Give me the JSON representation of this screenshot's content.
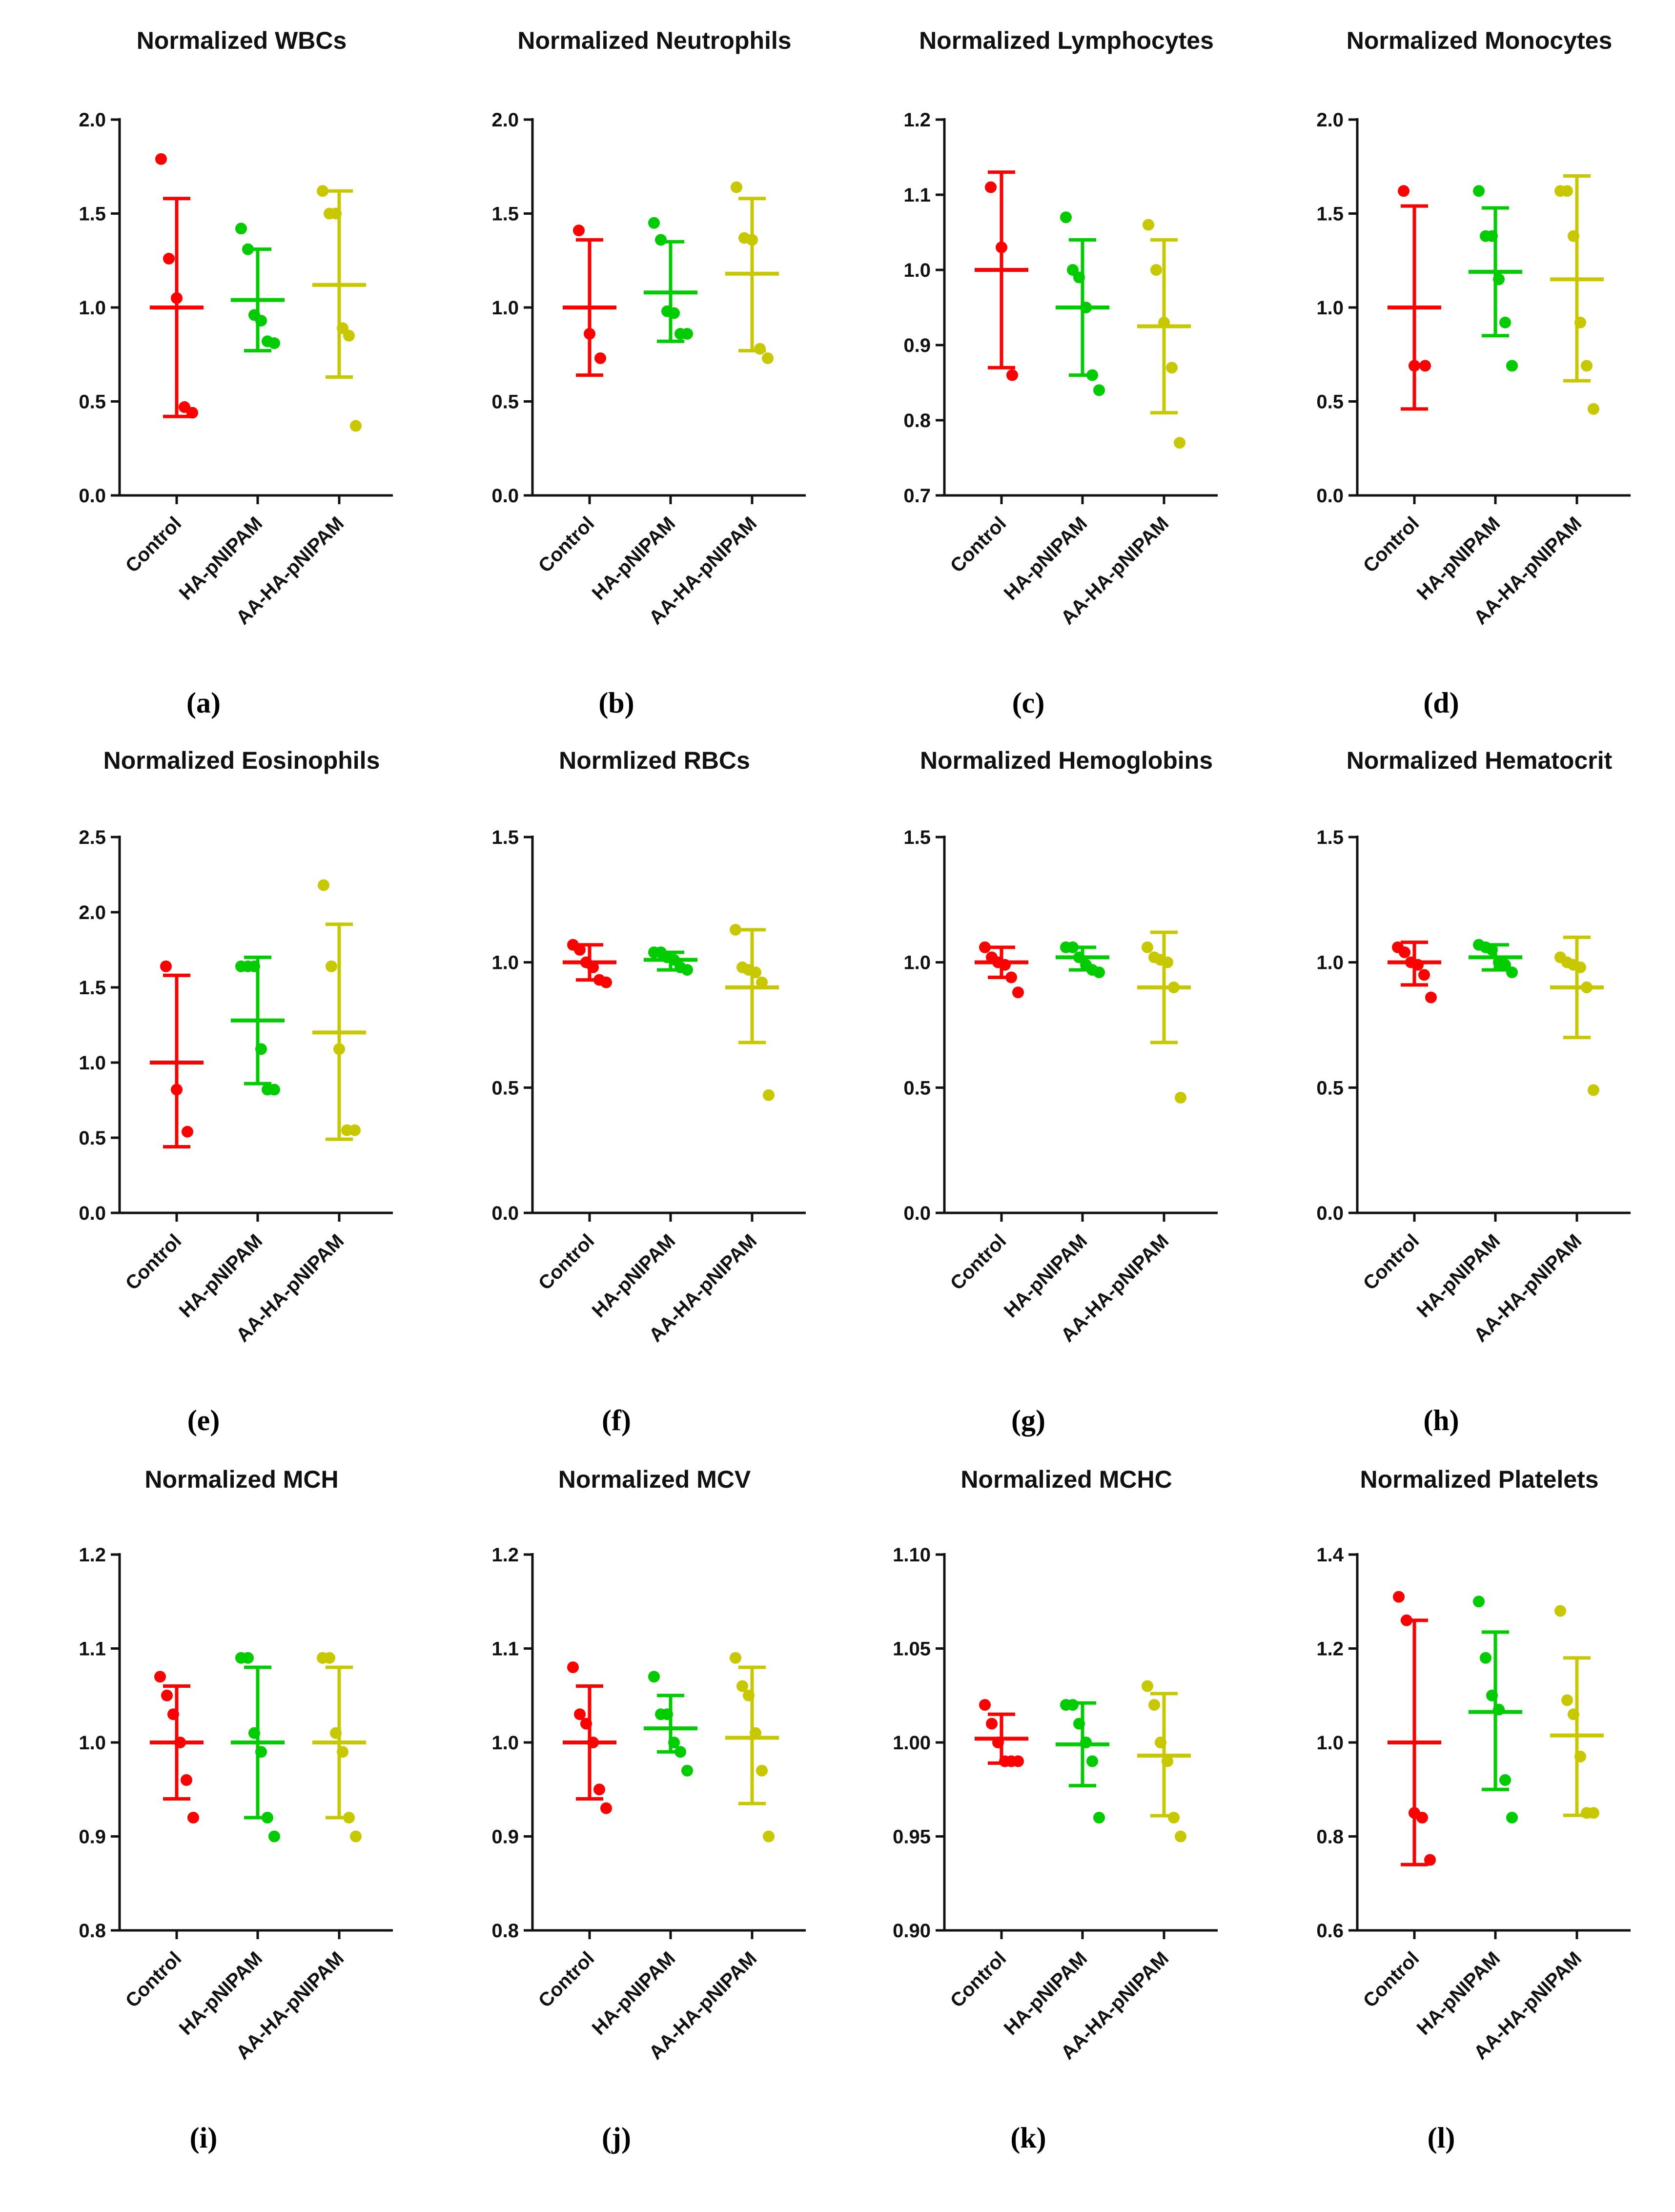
{
  "colors": {
    "Control": "#ff0000",
    "HA-pNIPAM": "#00cc00",
    "AA-HA-pNIPAM": "#c8c800"
  },
  "chart_data": [
    {
      "type": "scatter",
      "letter": "(a)",
      "title": "Normalized WBCs",
      "categories": [
        "Control",
        "HA-pNIPAM",
        "AA-HA-pNIPAM"
      ],
      "ylim": [
        0.0,
        2.0
      ],
      "yticks": [
        "0.0",
        "0.5",
        "1.0",
        "1.5",
        "2.0"
      ],
      "groups": [
        {
          "name": "Control",
          "points": [
            1.79,
            1.26,
            1.05,
            0.47,
            0.44
          ],
          "mean": 1.0,
          "sd_low": 0.42,
          "sd_high": 1.58
        },
        {
          "name": "HA-pNIPAM",
          "points": [
            1.42,
            1.31,
            0.96,
            0.93,
            0.82,
            0.81
          ],
          "mean": 1.04,
          "sd_low": 0.77,
          "sd_high": 1.31
        },
        {
          "name": "AA-HA-pNIPAM",
          "points": [
            1.62,
            1.5,
            1.5,
            0.89,
            0.85,
            0.37
          ],
          "mean": 1.12,
          "sd_low": 0.63,
          "sd_high": 1.62
        }
      ]
    },
    {
      "type": "scatter",
      "letter": "(b)",
      "title": "Normalized Neutrophils",
      "categories": [
        "Control",
        "HA-pNIPAM",
        "AA-HA-pNIPAM"
      ],
      "ylim": [
        0.0,
        2.0
      ],
      "yticks": [
        "0.0",
        "0.5",
        "1.0",
        "1.5",
        "2.0"
      ],
      "groups": [
        {
          "name": "Control",
          "points": [
            1.41,
            0.86,
            0.73
          ],
          "mean": 1.0,
          "sd_low": 0.64,
          "sd_high": 1.36
        },
        {
          "name": "HA-pNIPAM",
          "points": [
            1.45,
            1.36,
            0.98,
            0.97,
            0.86,
            0.86
          ],
          "mean": 1.08,
          "sd_low": 0.82,
          "sd_high": 1.35
        },
        {
          "name": "AA-HA-pNIPAM",
          "points": [
            1.64,
            1.37,
            1.36,
            0.78,
            0.73
          ],
          "mean": 1.18,
          "sd_low": 0.77,
          "sd_high": 1.58
        }
      ]
    },
    {
      "type": "scatter",
      "letter": "(c)",
      "title": "Normalized Lymphocytes",
      "categories": [
        "Control",
        "HA-pNIPAM",
        "AA-HA-pNIPAM"
      ],
      "ylim": [
        0.7,
        1.2
      ],
      "yticks": [
        "0.7",
        "0.8",
        "0.9",
        "1.0",
        "1.1",
        "1.2"
      ],
      "groups": [
        {
          "name": "Control",
          "points": [
            1.11,
            1.03,
            0.86
          ],
          "mean": 1.0,
          "sd_low": 0.87,
          "sd_high": 1.13
        },
        {
          "name": "HA-pNIPAM",
          "points": [
            1.07,
            1.0,
            0.99,
            0.95,
            0.86,
            0.84
          ],
          "mean": 0.95,
          "sd_low": 0.86,
          "sd_high": 1.04
        },
        {
          "name": "AA-HA-pNIPAM",
          "points": [
            1.06,
            1.0,
            0.93,
            0.87,
            0.77
          ],
          "mean": 0.925,
          "sd_low": 0.81,
          "sd_high": 1.04
        }
      ]
    },
    {
      "type": "scatter",
      "letter": "(d)",
      "title": "Normalized Monocytes",
      "categories": [
        "Control",
        "HA-pNIPAM",
        "AA-HA-pNIPAM"
      ],
      "ylim": [
        0.0,
        2.0
      ],
      "yticks": [
        "0.0",
        "0.5",
        "1.0",
        "1.5",
        "2.0"
      ],
      "groups": [
        {
          "name": "Control",
          "points": [
            1.62,
            0.69,
            0.69
          ],
          "mean": 1.0,
          "sd_low": 0.46,
          "sd_high": 1.54
        },
        {
          "name": "HA-pNIPAM",
          "points": [
            1.62,
            1.38,
            1.38,
            1.15,
            0.92,
            0.69
          ],
          "mean": 1.19,
          "sd_low": 0.85,
          "sd_high": 1.53
        },
        {
          "name": "AA-HA-pNIPAM",
          "points": [
            1.62,
            1.62,
            1.38,
            0.92,
            0.69,
            0.46
          ],
          "mean": 1.15,
          "sd_low": 0.61,
          "sd_high": 1.7
        }
      ]
    },
    {
      "type": "scatter",
      "letter": "(e)",
      "title": "Normalized Eosinophils",
      "categories": [
        "Control",
        "HA-pNIPAM",
        "AA-HA-pNIPAM"
      ],
      "ylim": [
        0.0,
        2.5
      ],
      "yticks": [
        "0.0",
        "0.5",
        "1.0",
        "1.5",
        "2.0",
        "2.5"
      ],
      "groups": [
        {
          "name": "Control",
          "points": [
            1.64,
            0.82,
            0.54
          ],
          "mean": 1.0,
          "sd_low": 0.44,
          "sd_high": 1.58
        },
        {
          "name": "HA-pNIPAM",
          "points": [
            1.64,
            1.64,
            1.64,
            1.09,
            0.82,
            0.82
          ],
          "mean": 1.28,
          "sd_low": 0.86,
          "sd_high": 1.7
        },
        {
          "name": "AA-HA-pNIPAM",
          "points": [
            2.18,
            1.64,
            1.09,
            0.55,
            0.55
          ],
          "mean": 1.2,
          "sd_low": 0.49,
          "sd_high": 1.92
        }
      ]
    },
    {
      "type": "scatter",
      "letter": "(f)",
      "title": "Normlized RBCs",
      "categories": [
        "Control",
        "HA-pNIPAM",
        "AA-HA-pNIPAM"
      ],
      "ylim": [
        0.0,
        1.5
      ],
      "yticks": [
        "0.0",
        "0.5",
        "1.0",
        "1.5"
      ],
      "groups": [
        {
          "name": "Control",
          "points": [
            1.07,
            1.05,
            1.0,
            0.98,
            0.93,
            0.92
          ],
          "mean": 1.0,
          "sd_low": 0.93,
          "sd_high": 1.07
        },
        {
          "name": "HA-pNIPAM",
          "points": [
            1.04,
            1.04,
            1.02,
            1.01,
            0.98,
            0.97
          ],
          "mean": 1.01,
          "sd_low": 0.97,
          "sd_high": 1.04
        },
        {
          "name": "AA-HA-pNIPAM",
          "points": [
            1.13,
            0.98,
            0.97,
            0.96,
            0.92,
            0.47
          ],
          "mean": 0.9,
          "sd_low": 0.68,
          "sd_high": 1.13
        }
      ]
    },
    {
      "type": "scatter",
      "letter": "(g)",
      "title": "Normalized Hemoglobins",
      "categories": [
        "Control",
        "HA-pNIPAM",
        "AA-HA-pNIPAM"
      ],
      "ylim": [
        0.0,
        1.5
      ],
      "yticks": [
        "0.0",
        "0.5",
        "1.0",
        "1.5"
      ],
      "groups": [
        {
          "name": "Control",
          "points": [
            1.06,
            1.02,
            1.0,
            0.99,
            0.94,
            0.88
          ],
          "mean": 1.0,
          "sd_low": 0.94,
          "sd_high": 1.06
        },
        {
          "name": "HA-pNIPAM",
          "points": [
            1.06,
            1.06,
            1.02,
            0.99,
            0.97,
            0.96
          ],
          "mean": 1.02,
          "sd_low": 0.97,
          "sd_high": 1.06
        },
        {
          "name": "AA-HA-pNIPAM",
          "points": [
            1.06,
            1.02,
            1.01,
            1.0,
            0.9,
            0.46
          ],
          "mean": 0.9,
          "sd_low": 0.68,
          "sd_high": 1.12
        }
      ]
    },
    {
      "type": "scatter",
      "letter": "(h)",
      "title": "Normalized Hematocrit",
      "categories": [
        "Control",
        "HA-pNIPAM",
        "AA-HA-pNIPAM"
      ],
      "ylim": [
        0.0,
        1.5
      ],
      "yticks": [
        "0.0",
        "0.5",
        "1.0",
        "1.5"
      ],
      "groups": [
        {
          "name": "Control",
          "points": [
            1.06,
            1.04,
            1.0,
            0.99,
            0.95,
            0.86
          ],
          "mean": 1.0,
          "sd_low": 0.91,
          "sd_high": 1.08
        },
        {
          "name": "HA-pNIPAM",
          "points": [
            1.07,
            1.06,
            1.05,
            1.0,
            0.99,
            0.96
          ],
          "mean": 1.02,
          "sd_low": 0.97,
          "sd_high": 1.07
        },
        {
          "name": "AA-HA-pNIPAM",
          "points": [
            1.02,
            1.0,
            0.99,
            0.98,
            0.9,
            0.49
          ],
          "mean": 0.9,
          "sd_low": 0.7,
          "sd_high": 1.1
        }
      ]
    },
    {
      "type": "scatter",
      "letter": "(i)",
      "title": "Normalized MCH",
      "categories": [
        "Control",
        "HA-pNIPAM",
        "AA-HA-pNIPAM"
      ],
      "ylim": [
        0.8,
        1.2
      ],
      "yticks": [
        "0.8",
        "0.9",
        "1.0",
        "1.1",
        "1.2"
      ],
      "groups": [
        {
          "name": "Control",
          "points": [
            1.07,
            1.05,
            1.03,
            1.0,
            0.96,
            0.92
          ],
          "mean": 1.0,
          "sd_low": 0.94,
          "sd_high": 1.06
        },
        {
          "name": "HA-pNIPAM",
          "points": [
            1.09,
            1.09,
            1.01,
            0.99,
            0.92,
            0.9
          ],
          "mean": 1.0,
          "sd_low": 0.92,
          "sd_high": 1.08
        },
        {
          "name": "AA-HA-pNIPAM",
          "points": [
            1.09,
            1.09,
            1.01,
            0.99,
            0.92,
            0.9
          ],
          "mean": 1.0,
          "sd_low": 0.92,
          "sd_high": 1.08
        }
      ]
    },
    {
      "type": "scatter",
      "letter": "(j)",
      "title": "Normalized MCV",
      "categories": [
        "Control",
        "HA-pNIPAM",
        "AA-HA-pNIPAM"
      ],
      "ylim": [
        0.8,
        1.2
      ],
      "yticks": [
        "0.8",
        "0.9",
        "1.0",
        "1.1",
        "1.2"
      ],
      "groups": [
        {
          "name": "Control",
          "points": [
            1.08,
            1.03,
            1.02,
            1.0,
            0.95,
            0.93
          ],
          "mean": 1.0,
          "sd_low": 0.94,
          "sd_high": 1.06
        },
        {
          "name": "HA-pNIPAM",
          "points": [
            1.07,
            1.03,
            1.03,
            1.0,
            0.99,
            0.97
          ],
          "mean": 1.015,
          "sd_low": 0.99,
          "sd_high": 1.05
        },
        {
          "name": "AA-HA-pNIPAM",
          "points": [
            1.09,
            1.06,
            1.05,
            1.01,
            0.97,
            0.9
          ],
          "mean": 1.005,
          "sd_low": 0.935,
          "sd_high": 1.08
        }
      ]
    },
    {
      "type": "scatter",
      "letter": "(k)",
      "title": "Normalized MCHC",
      "categories": [
        "Control",
        "HA-pNIPAM",
        "AA-HA-pNIPAM"
      ],
      "ylim": [
        0.9,
        1.1
      ],
      "yticks": [
        "0.90",
        "0.95",
        "1.00",
        "1.05",
        "1.10"
      ],
      "groups": [
        {
          "name": "Control",
          "points": [
            1.02,
            1.01,
            1.0,
            0.99,
            0.99,
            0.99
          ],
          "mean": 1.002,
          "sd_low": 0.989,
          "sd_high": 1.015
        },
        {
          "name": "HA-pNIPAM",
          "points": [
            1.02,
            1.02,
            1.01,
            1.0,
            0.99,
            0.96
          ],
          "mean": 0.999,
          "sd_low": 0.977,
          "sd_high": 1.021
        },
        {
          "name": "AA-HA-pNIPAM",
          "points": [
            1.03,
            1.02,
            1.0,
            0.99,
            0.96,
            0.95
          ],
          "mean": 0.993,
          "sd_low": 0.961,
          "sd_high": 1.026
        }
      ]
    },
    {
      "type": "scatter",
      "letter": "(l)",
      "title": "Normalized Platelets",
      "categories": [
        "Control",
        "HA-pNIPAM",
        "AA-HA-pNIPAM"
      ],
      "ylim": [
        0.6,
        1.4
      ],
      "yticks": [
        "0.6",
        "0.8",
        "1.0",
        "1.2",
        "1.4"
      ],
      "groups": [
        {
          "name": "Control",
          "points": [
            1.31,
            1.26,
            0.85,
            0.84,
            0.75
          ],
          "mean": 1.0,
          "sd_low": 0.74,
          "sd_high": 1.26
        },
        {
          "name": "HA-pNIPAM",
          "points": [
            1.3,
            1.18,
            1.1,
            1.07,
            0.92,
            0.84
          ],
          "mean": 1.065,
          "sd_low": 0.9,
          "sd_high": 1.235
        },
        {
          "name": "AA-HA-pNIPAM",
          "points": [
            1.28,
            1.09,
            1.06,
            0.97,
            0.85,
            0.85
          ],
          "mean": 1.015,
          "sd_low": 0.845,
          "sd_high": 1.18
        }
      ]
    }
  ]
}
